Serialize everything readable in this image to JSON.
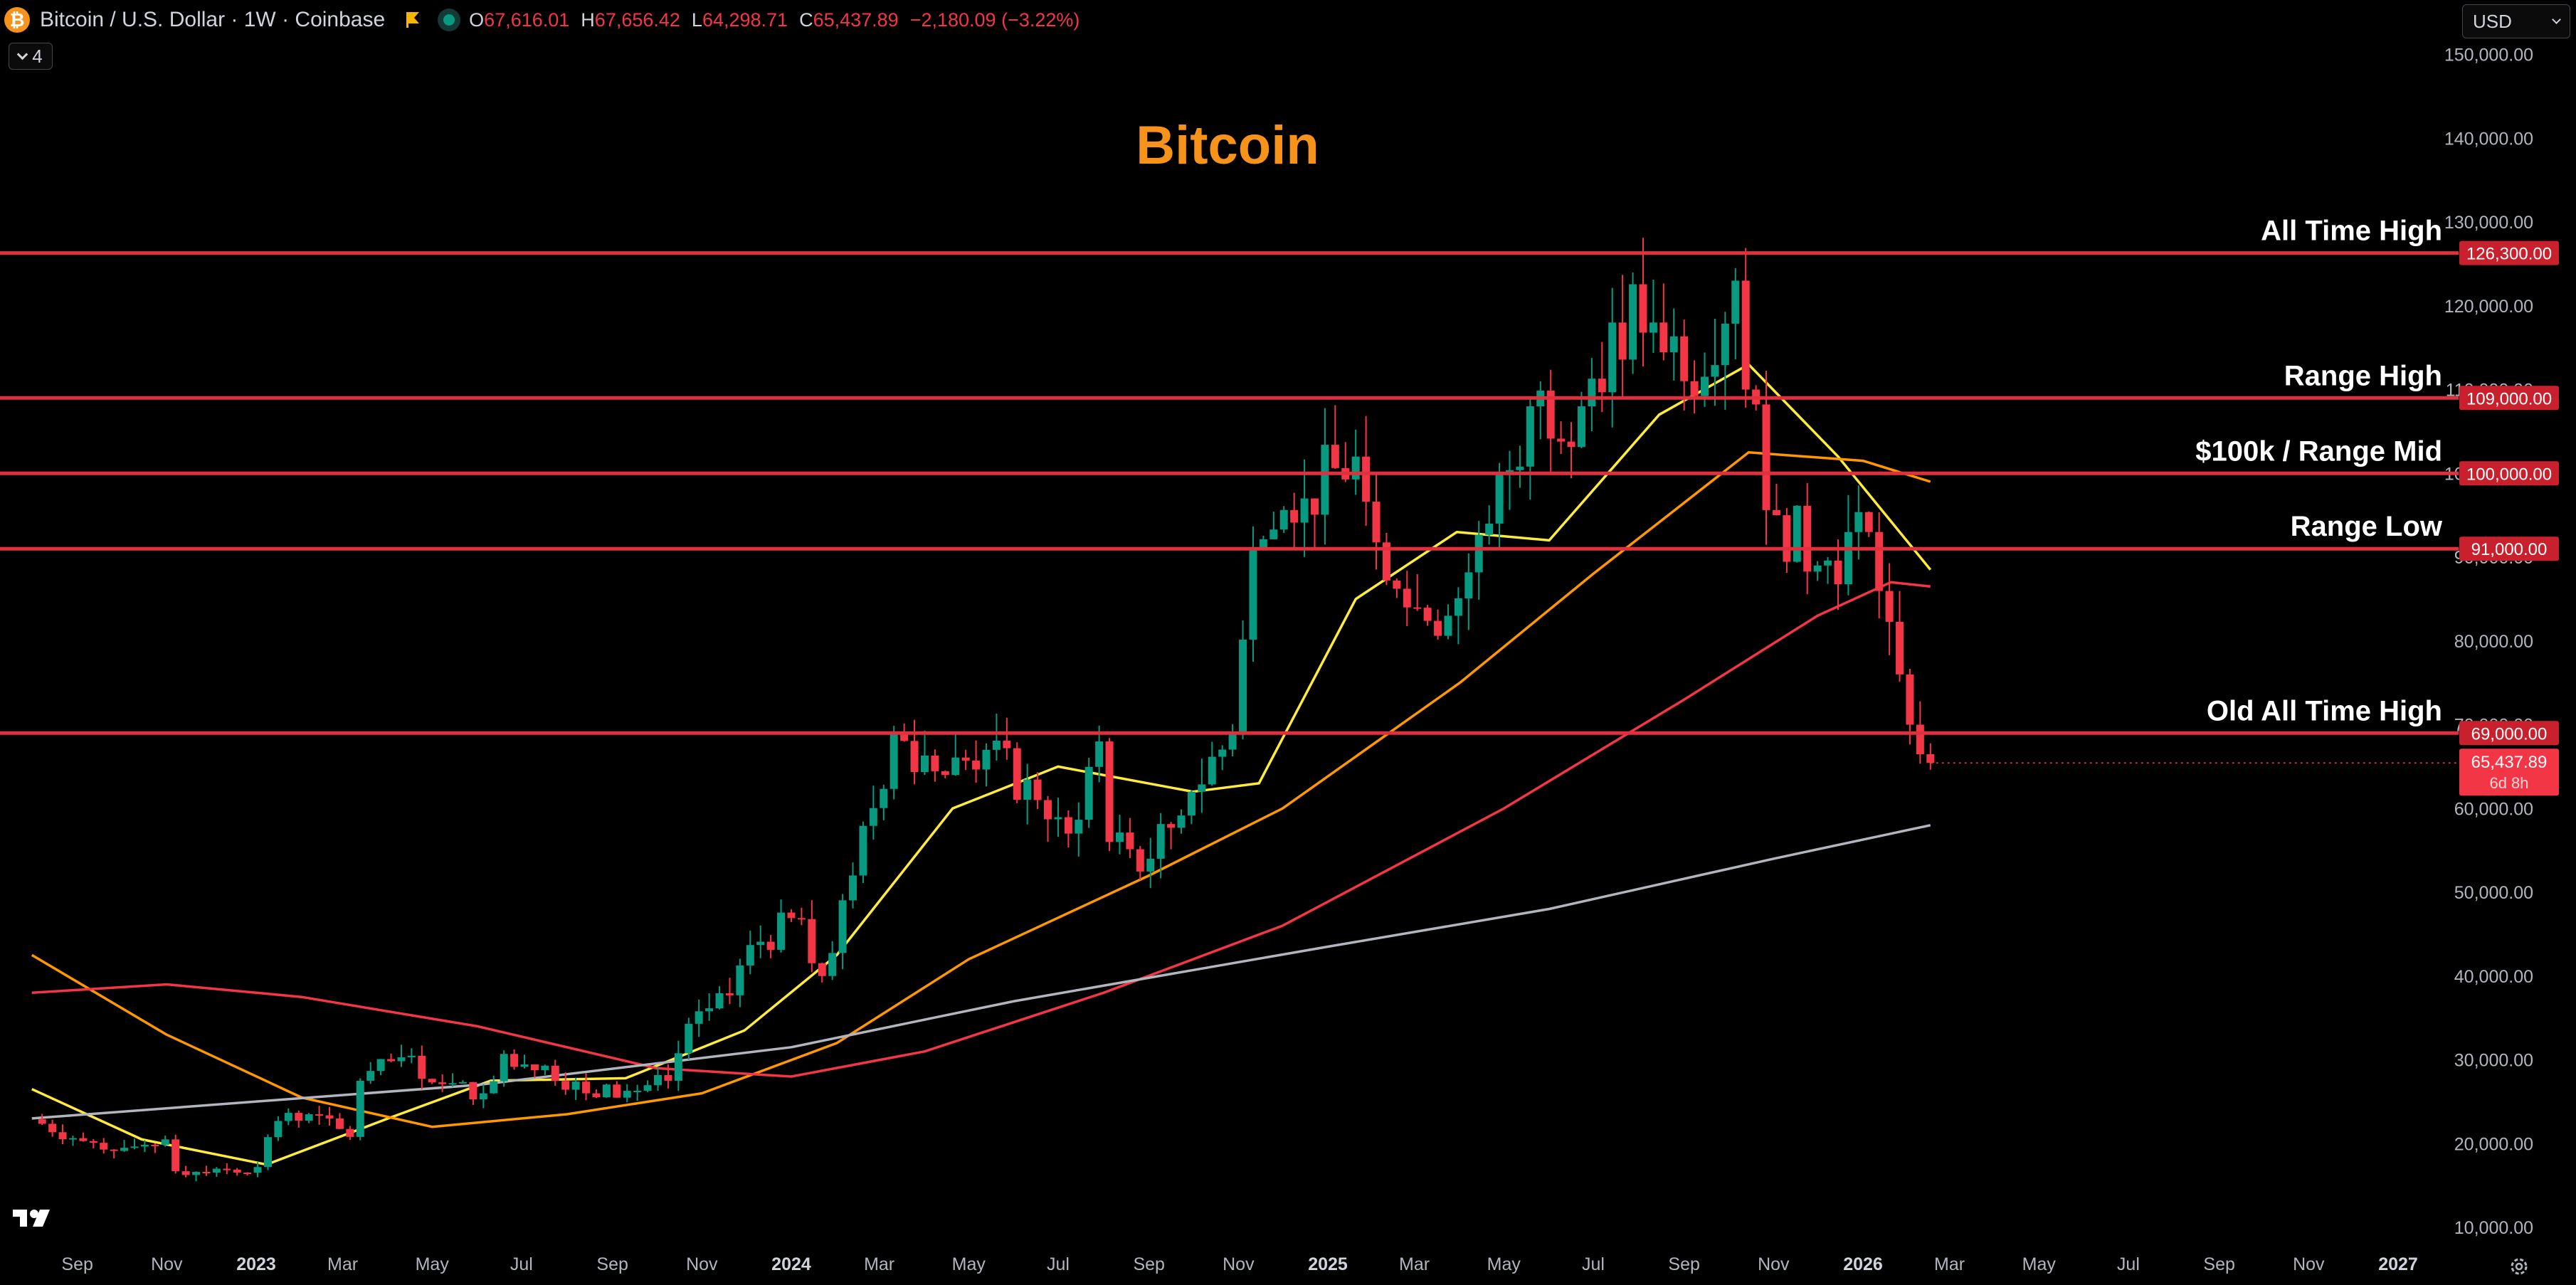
{
  "header": {
    "coin_glyph": "₿",
    "symbol_text": "Bitcoin / U.S. Dollar · 1W · Coinbase",
    "open_key": "O",
    "open_val": "67,616.01",
    "high_key": "H",
    "high_val": "67,656.42",
    "low_key": "L",
    "low_val": "64,298.71",
    "close_key": "C",
    "close_val": "65,437.89",
    "change": "−2,180.09 (−3.22%)"
  },
  "indicators_toggle": {
    "count": "4"
  },
  "currency_select": {
    "value": "USD"
  },
  "icons": {
    "coin": "bitcoin-icon",
    "flag": "flag-icon",
    "market_status": "market-status-icon",
    "chevron": "chevron-down-icon",
    "logo": "tradingview-logo",
    "settings": "gear-icon"
  },
  "colors": {
    "background": "#000000",
    "up": "#089981",
    "down": "#f23645",
    "level_line": "#e0303e",
    "title": "#f7931a",
    "ma_fast": "#ffeb3b",
    "ma_mid": "#ff9800",
    "ma_slow": "#f23645",
    "ma_long": "#b2b5be"
  },
  "chart_data": {
    "type": "candlestick",
    "title": "Bitcoin",
    "timeframe": "1W",
    "y_scale": "linear",
    "y_range": [
      10000,
      150000
    ],
    "y_ticks": [
      10000,
      20000,
      30000,
      40000,
      50000,
      60000,
      70000,
      80000,
      90000,
      100000,
      110000,
      120000,
      130000,
      140000,
      150000
    ],
    "y_tick_labels": [
      "10,000.00",
      "20,000.00",
      "30,000.00",
      "40,000.00",
      "50,000.00",
      "60,000.00",
      "70,000.00",
      "80,000.00",
      "90,000.00",
      "100,000.00",
      "110,000.00",
      "120,000.00",
      "130,000.00",
      "140,000.00",
      "150,000.00"
    ],
    "x_range": [
      "2022-08-01",
      "2027-02-15"
    ],
    "x_ticks": [
      {
        "date": "2022-09-01",
        "label": "Sep",
        "year": false
      },
      {
        "date": "2022-11-01",
        "label": "Nov",
        "year": false
      },
      {
        "date": "2023-01-01",
        "label": "2023",
        "year": true
      },
      {
        "date": "2023-03-01",
        "label": "Mar",
        "year": false
      },
      {
        "date": "2023-05-01",
        "label": "May",
        "year": false
      },
      {
        "date": "2023-07-01",
        "label": "Jul",
        "year": false
      },
      {
        "date": "2023-09-01",
        "label": "Sep",
        "year": false
      },
      {
        "date": "2023-11-01",
        "label": "Nov",
        "year": false
      },
      {
        "date": "2024-01-01",
        "label": "2024",
        "year": true
      },
      {
        "date": "2024-03-01",
        "label": "Mar",
        "year": false
      },
      {
        "date": "2024-05-01",
        "label": "May",
        "year": false
      },
      {
        "date": "2024-07-01",
        "label": "Jul",
        "year": false
      },
      {
        "date": "2024-09-01",
        "label": "Sep",
        "year": false
      },
      {
        "date": "2024-11-01",
        "label": "Nov",
        "year": false
      },
      {
        "date": "2025-01-01",
        "label": "2025",
        "year": true
      },
      {
        "date": "2025-03-01",
        "label": "Mar",
        "year": false
      },
      {
        "date": "2025-05-01",
        "label": "May",
        "year": false
      },
      {
        "date": "2025-07-01",
        "label": "Jul",
        "year": false
      },
      {
        "date": "2025-09-01",
        "label": "Sep",
        "year": false
      },
      {
        "date": "2025-11-01",
        "label": "Nov",
        "year": false
      },
      {
        "date": "2026-01-01",
        "label": "2026",
        "year": true
      },
      {
        "date": "2026-03-01",
        "label": "Mar",
        "year": false
      },
      {
        "date": "2026-05-01",
        "label": "May",
        "year": false
      },
      {
        "date": "2026-07-01",
        "label": "Jul",
        "year": false
      },
      {
        "date": "2026-09-01",
        "label": "Sep",
        "year": false
      },
      {
        "date": "2026-11-01",
        "label": "Nov",
        "year": false
      },
      {
        "date": "2027-01-01",
        "label": "2027",
        "year": true
      }
    ],
    "levels": [
      {
        "name": "All Time High",
        "value": 126300,
        "tag": "126,300.00"
      },
      {
        "name": "Range High",
        "value": 109000,
        "tag": "109,000.00"
      },
      {
        "name": "$100k / Range Mid",
        "value": 100000,
        "tag": "100,000.00"
      },
      {
        "name": "Range Low",
        "value": 91000,
        "tag": "91,000.00"
      },
      {
        "name": "Old All Time High",
        "value": 69000,
        "tag": "69,000.00"
      }
    ],
    "last_price": {
      "value": 65437.89,
      "label": "65,437.89",
      "countdown": "6d 8h"
    },
    "candles": [
      {
        "date": "2022-08-01",
        "close": 22900
      },
      {
        "date": "2022-09-05",
        "close": 20300
      },
      {
        "date": "2022-10-03",
        "close": 19500
      },
      {
        "date": "2022-10-31",
        "close": 20500
      },
      {
        "date": "2022-11-07",
        "close": 16700
      },
      {
        "date": "2022-12-05",
        "close": 17000
      },
      {
        "date": "2023-01-02",
        "close": 17200
      },
      {
        "date": "2023-01-16",
        "close": 22700
      },
      {
        "date": "2023-02-06",
        "close": 23500
      },
      {
        "date": "2023-03-06",
        "close": 20800
      },
      {
        "date": "2023-03-13",
        "close": 27500
      },
      {
        "date": "2023-04-10",
        "close": 30300
      },
      {
        "date": "2023-05-08",
        "close": 27100
      },
      {
        "date": "2023-06-05",
        "close": 26000
      },
      {
        "date": "2023-06-19",
        "close": 30700
      },
      {
        "date": "2023-07-17",
        "close": 29300
      },
      {
        "date": "2023-08-14",
        "close": 26000
      },
      {
        "date": "2023-09-11",
        "close": 26300
      },
      {
        "date": "2023-10-09",
        "close": 27500
      },
      {
        "date": "2023-10-23",
        "close": 34300
      },
      {
        "date": "2023-11-20",
        "close": 37700
      },
      {
        "date": "2023-12-04",
        "close": 43700
      },
      {
        "date": "2024-01-08",
        "close": 46800
      },
      {
        "date": "2024-01-22",
        "close": 40000
      },
      {
        "date": "2024-02-12",
        "close": 52000
      },
      {
        "date": "2024-03-11",
        "close": 69000
      },
      {
        "date": "2024-04-15",
        "close": 64000
      },
      {
        "date": "2024-05-13",
        "close": 67000
      },
      {
        "date": "2024-06-17",
        "close": 61000
      },
      {
        "date": "2024-07-08",
        "close": 57000
      },
      {
        "date": "2024-07-29",
        "close": 68000
      },
      {
        "date": "2024-08-05",
        "close": 56000
      },
      {
        "date": "2024-09-02",
        "close": 54000
      },
      {
        "date": "2024-09-30",
        "close": 62000
      },
      {
        "date": "2024-10-28",
        "close": 69000
      },
      {
        "date": "2024-11-11",
        "close": 91000
      },
      {
        "date": "2024-12-16",
        "close": 97000
      },
      {
        "date": "2025-01-20",
        "close": 102000
      },
      {
        "date": "2025-02-24",
        "close": 84000
      },
      {
        "date": "2025-03-24",
        "close": 83000
      },
      {
        "date": "2025-04-21",
        "close": 94000
      },
      {
        "date": "2025-05-19",
        "close": 108000
      },
      {
        "date": "2025-06-23",
        "close": 108000
      },
      {
        "date": "2025-07-14",
        "close": 118000
      },
      {
        "date": "2025-08-11",
        "close": 118000
      },
      {
        "date": "2025-09-01",
        "close": 111000
      },
      {
        "date": "2025-10-06",
        "close": 123000
      },
      {
        "date": "2025-10-13",
        "close": 110000
      },
      {
        "date": "2025-11-03",
        "close": 95000
      },
      {
        "date": "2025-12-01",
        "close": 89000
      },
      {
        "date": "2026-01-05",
        "close": 93000
      },
      {
        "date": "2026-01-26",
        "close": 76000
      },
      {
        "date": "2026-02-02",
        "close": 70000
      },
      {
        "date": "2026-02-16",
        "close": 65437.89
      }
    ],
    "moving_averages": [
      {
        "color_key": "ma_fast",
        "points": [
          [
            "2022-08-01",
            26500
          ],
          [
            "2022-10-15",
            20500
          ],
          [
            "2023-01-08",
            17500
          ],
          [
            "2023-04-01",
            23000
          ],
          [
            "2023-06-10",
            27500
          ],
          [
            "2023-09-10",
            27800
          ],
          [
            "2023-11-30",
            33500
          ],
          [
            "2024-02-01",
            42500
          ],
          [
            "2024-04-20",
            60000
          ],
          [
            "2024-07-01",
            65000
          ],
          [
            "2024-10-01",
            62000
          ],
          [
            "2024-11-15",
            63000
          ],
          [
            "2025-01-20",
            85000
          ],
          [
            "2025-03-30",
            93000
          ],
          [
            "2025-06-01",
            92000
          ],
          [
            "2025-08-15",
            107000
          ],
          [
            "2025-10-15",
            113000
          ],
          [
            "2025-12-15",
            102000
          ],
          [
            "2026-02-16",
            88500
          ]
        ]
      },
      {
        "color_key": "ma_mid",
        "points": [
          [
            "2022-08-01",
            42500
          ],
          [
            "2022-11-01",
            33000
          ],
          [
            "2023-02-01",
            25500
          ],
          [
            "2023-05-01",
            22000
          ],
          [
            "2023-08-01",
            23500
          ],
          [
            "2023-11-01",
            26000
          ],
          [
            "2024-02-01",
            32000
          ],
          [
            "2024-05-01",
            42000
          ],
          [
            "2024-09-01",
            52000
          ],
          [
            "2024-12-01",
            60000
          ],
          [
            "2025-04-01",
            75000
          ],
          [
            "2025-07-01",
            88000
          ],
          [
            "2025-10-15",
            102500
          ],
          [
            "2026-01-01",
            101500
          ],
          [
            "2026-02-16",
            99000
          ]
        ]
      },
      {
        "color_key": "ma_slow",
        "points": [
          [
            "2022-08-01",
            38000
          ],
          [
            "2022-11-01",
            39000
          ],
          [
            "2023-02-01",
            37500
          ],
          [
            "2023-06-01",
            34000
          ],
          [
            "2023-10-01",
            29000
          ],
          [
            "2024-01-01",
            28000
          ],
          [
            "2024-04-01",
            31000
          ],
          [
            "2024-08-01",
            38000
          ],
          [
            "2024-12-01",
            46000
          ],
          [
            "2025-05-01",
            60000
          ],
          [
            "2025-09-01",
            73000
          ],
          [
            "2025-12-01",
            83000
          ],
          [
            "2026-01-20",
            87000
          ],
          [
            "2026-02-16",
            86500
          ]
        ]
      },
      {
        "color_key": "ma_long",
        "points": [
          [
            "2022-08-01",
            23000
          ],
          [
            "2023-06-01",
            27000
          ],
          [
            "2024-01-01",
            31500
          ],
          [
            "2024-06-01",
            37000
          ],
          [
            "2025-01-01",
            43500
          ],
          [
            "2025-06-01",
            48000
          ],
          [
            "2025-11-01",
            54000
          ],
          [
            "2026-02-16",
            58000
          ]
        ]
      }
    ]
  }
}
